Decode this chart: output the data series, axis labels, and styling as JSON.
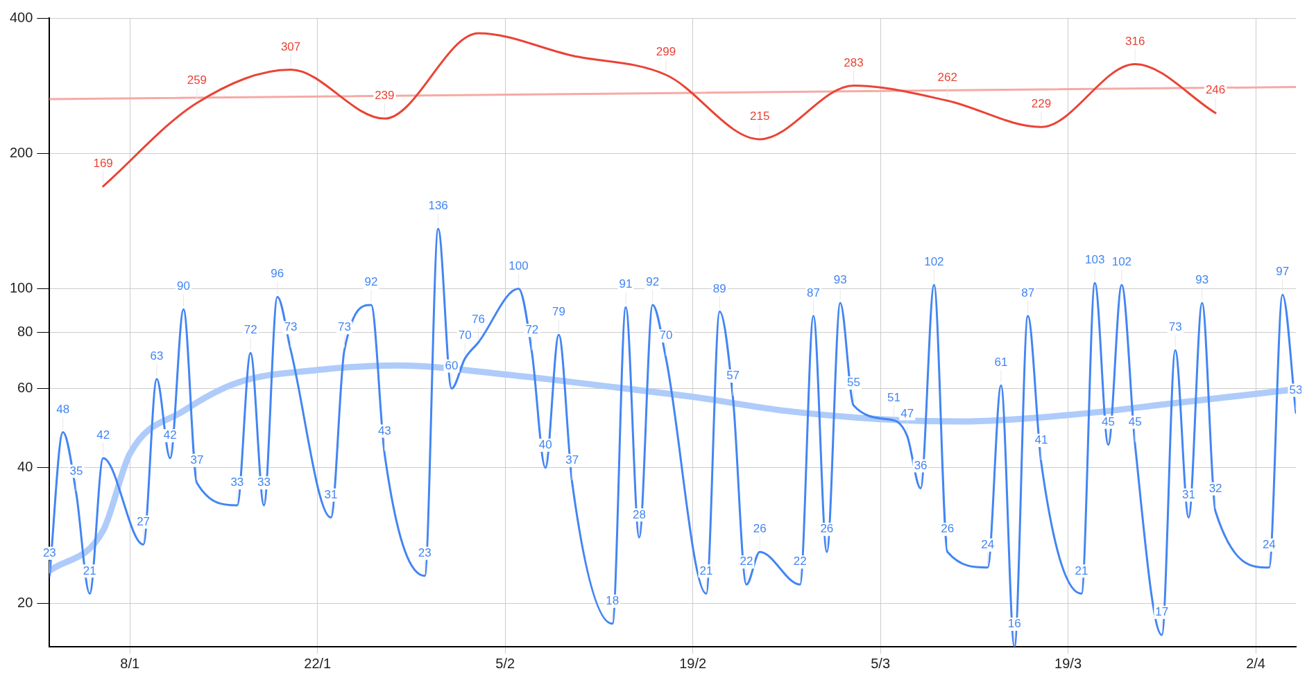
{
  "chart_data": {
    "type": "line",
    "xlim": [
      "--01-02",
      "--04-05"
    ],
    "xticks": [
      {
        "value": "--01-08",
        "label": "8/1"
      },
      {
        "value": "--01-22",
        "label": "22/1"
      },
      {
        "value": "--02-05",
        "label": "5/2"
      },
      {
        "value": "--02-19",
        "label": "19/2"
      },
      {
        "value": "--03-05",
        "label": "5/3"
      },
      {
        "value": "--03-19",
        "label": "19/3"
      },
      {
        "value": "--04-02",
        "label": "2/4"
      }
    ],
    "ylim": [
      16,
      400
    ],
    "yticks": [
      20,
      40,
      60,
      80,
      100,
      200,
      400
    ],
    "log": "y",
    "grid": true,
    "legend": false,
    "marker": "none",
    "line_style": "solid",
    "series": [
      {
        "color": "#aecbfa",
        "x": [
          "--01-02",
          "--01-06",
          "--01-08",
          "--01-12",
          "--01-16",
          "--01-22",
          "--01-28",
          "--02-05",
          "--02-12",
          "--02-19",
          "--02-26",
          "--03-05",
          "--03-11",
          "--03-19",
          "--03-27",
          "--04-05"
        ],
        "values": [
          23.6,
          29,
          43,
          53.5,
          61.8,
          66,
          67.5,
          64.5,
          61,
          57.5,
          53.5,
          51.3,
          50.7,
          52.4,
          55.7,
          59.8
        ]
      },
      {
        "color": "#f5aaa4",
        "x": [
          "--01-02",
          "--04-05"
        ],
        "values": [
          264,
          281
        ]
      },
      {
        "color": "#4285f4",
        "x": [
          "--01-02",
          "--01-03",
          "--01-04",
          "--01-05",
          "--01-06",
          "--01-09",
          "--01-10",
          "--01-11",
          "--01-12",
          "--01-13",
          "--01-16",
          "--01-17",
          "--01-18",
          "--01-19",
          "--01-20",
          "--01-23",
          "--01-24",
          "--01-26",
          "--01-27",
          "--01-30",
          "--01-31",
          "--02-01",
          "--02-02",
          "--02-03",
          "--02-06",
          "--02-07",
          "--02-08",
          "--02-09",
          "--02-10",
          "--02-13",
          "--02-14",
          "--02-15",
          "--02-16",
          "--02-17",
          "--02-20",
          "--02-21",
          "--02-22",
          "--02-23",
          "--02-24",
          "--02-27",
          "--02-28",
          "--03-01",
          "--03-02",
          "--03-03",
          "--03-06",
          "--03-07",
          "--03-08",
          "--03-09",
          "--03-10",
          "--03-13",
          "--03-14",
          "--03-15",
          "--03-16",
          "--03-17",
          "--03-20",
          "--03-21",
          "--03-22",
          "--03-23",
          "--03-24",
          "--03-26",
          "--03-27",
          "--03-28",
          "--03-29",
          "--03-30",
          "--04-03",
          "--04-04",
          "--04-05"
        ],
        "values": [
          23,
          48,
          35,
          21,
          42,
          27,
          63,
          42,
          90,
          37,
          33,
          72,
          33,
          96,
          73,
          31,
          73,
          92,
          43,
          23,
          136,
          60,
          70,
          76,
          100,
          72,
          40,
          79,
          37,
          18,
          91,
          28,
          92,
          70,
          21,
          89,
          57,
          22,
          26,
          22,
          87,
          26,
          93,
          55,
          51,
          47,
          36,
          102,
          26,
          24,
          61,
          16,
          87,
          41,
          21,
          103,
          45,
          102,
          45,
          17,
          73,
          31,
          93,
          32,
          24,
          97,
          53
        ],
        "value_labels": [
          "23",
          "48",
          "35",
          "21",
          "42",
          "27",
          "63",
          "42",
          "90",
          "37",
          "33",
          "72",
          "33",
          "96",
          "73",
          "31",
          "73",
          "92",
          "43",
          "23",
          "136",
          "60",
          "70",
          "76",
          "100",
          "72",
          "40",
          "79",
          "37",
          "18",
          "91",
          "28",
          "92",
          "70",
          "21",
          "89",
          "57",
          "22",
          "26",
          "22",
          "87",
          "26",
          "93",
          "55",
          "51",
          "47",
          "36",
          "102",
          "26",
          "24",
          "61",
          "16",
          "87",
          "41",
          "21",
          "103",
          "45",
          "102",
          "45",
          "17",
          "73",
          "31",
          "93",
          "32",
          "24",
          "97",
          "53"
        ]
      },
      {
        "color": "#ea4335",
        "x": [
          "--01-06",
          "--01-13",
          "--01-20",
          "--01-27",
          "--02-03",
          "--02-10",
          "--02-17",
          "--02-24",
          "--03-03",
          "--03-10",
          "--03-17",
          "--03-24",
          "--03-30"
        ],
        "values": [
          169,
          259,
          307,
          239,
          370,
          330,
          299,
          215,
          283,
          262,
          229,
          316,
          246
        ],
        "value_labels": [
          "169",
          "259",
          "307",
          "239",
          null,
          null,
          "299",
          "215",
          "283",
          "262",
          "229",
          "316",
          "246"
        ]
      }
    ]
  }
}
